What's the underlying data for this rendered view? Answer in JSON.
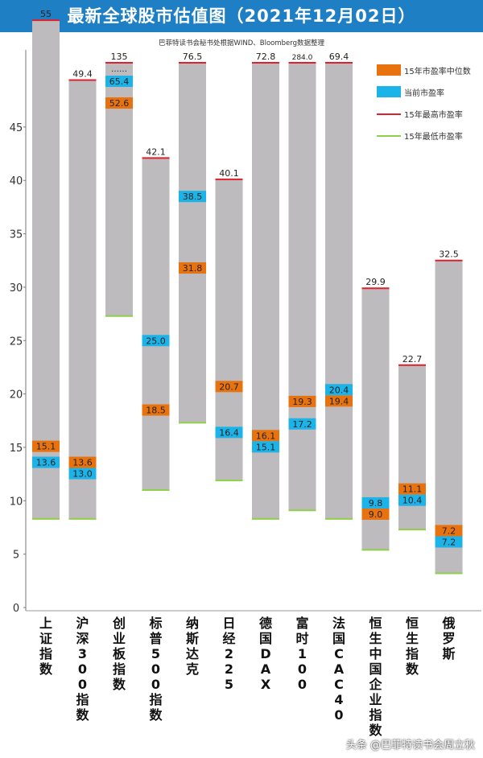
{
  "header": {
    "title": "最新全球股市估值图（2021年12月02日）",
    "source": "巴菲特读书会秘书处根据WIND、Bloomberg数据整理"
  },
  "watermark": "头条 @巴菲特读书会周立秋",
  "colors": {
    "bar": "#bdbbbd",
    "median": "#e8730e",
    "current": "#1cb3e8",
    "high": "#e0202c",
    "low": "#8fcf4a"
  },
  "chart_data": {
    "type": "bar",
    "title": "最新全球股市估值图（2021年12月02日）",
    "y_ticks": [
      0,
      5,
      10,
      15,
      20,
      25,
      30,
      35,
      40,
      45
    ],
    "ylim": [
      0,
      55
    ],
    "legend": [
      "15年市盈率中位数",
      "当前市盈率",
      "15年最高市盈率",
      "15年最低市盈率"
    ],
    "indices": [
      {
        "name": "上证指数",
        "high": 55,
        "high_label": "55",
        "low": 8.3,
        "median": 15.1,
        "current": 13.6
      },
      {
        "name": "沪深300指数",
        "high": 49.4,
        "high_label": "49.4",
        "low": 8.3,
        "median": 13.6,
        "current": 13.0
      },
      {
        "name": "创业板指数",
        "high": 135,
        "high_label": "135",
        "low": 27.3,
        "median": 52.6,
        "current": 65.4,
        "broken": true
      },
      {
        "name": "标普500指数",
        "high": 42.1,
        "high_label": "42.1",
        "low": 11.0,
        "median": 18.5,
        "current": 25.0
      },
      {
        "name": "纳斯达克",
        "high": 76.5,
        "high_label": "76.5",
        "low": 17.3,
        "median": 31.8,
        "current": 38.5
      },
      {
        "name": "日经225",
        "high": 40.1,
        "high_label": "40.1",
        "low": 11.9,
        "median": 20.7,
        "current": 16.4
      },
      {
        "name": "德国DAX",
        "high": 72.8,
        "high_label": "72.8",
        "low": 8.3,
        "median": 16.1,
        "current": 15.1
      },
      {
        "name": "富时100",
        "high": 284.0,
        "high_label": "284.0",
        "low": 9.1,
        "median": 19.3,
        "current": 17.2
      },
      {
        "name": "法国CAC40",
        "high": 69.4,
        "high_label": "69.4",
        "low": 8.3,
        "median": 19.4,
        "current": 20.4
      },
      {
        "name": "恒生中国企业指数",
        "high": 29.9,
        "high_label": "29.9",
        "low": 5.4,
        "median": 9.0,
        "current": 9.8
      },
      {
        "name": "恒生指数",
        "high": 22.7,
        "high_label": "22.7",
        "low": 7.3,
        "median": 11.1,
        "current": 10.4
      },
      {
        "name": "俄罗斯",
        "high": 32.5,
        "high_label": "32.5",
        "low": 3.2,
        "median": 7.2,
        "current": 7.2
      }
    ]
  }
}
